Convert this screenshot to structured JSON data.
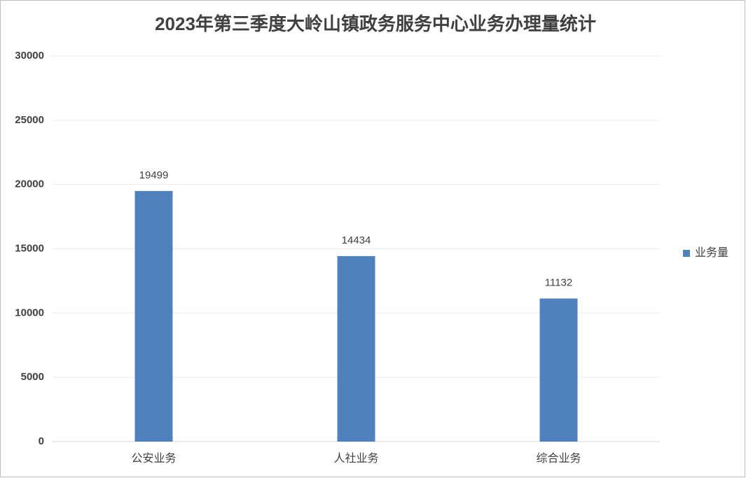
{
  "chart_data": {
    "type": "bar",
    "title": "2023年第三季度大岭山镇政务服务中心业务办理量统计",
    "categories": [
      "公安业务",
      "人社业务",
      "综合业务"
    ],
    "series": [
      {
        "name": "业务量",
        "color": "#4f81bd",
        "values": [
          19499,
          14434,
          11132
        ]
      }
    ],
    "ylim": [
      0,
      30000
    ],
    "yticks": [
      0,
      5000,
      10000,
      15000,
      20000,
      25000,
      30000
    ],
    "grid": true,
    "legend": "right",
    "data_labels": true
  }
}
